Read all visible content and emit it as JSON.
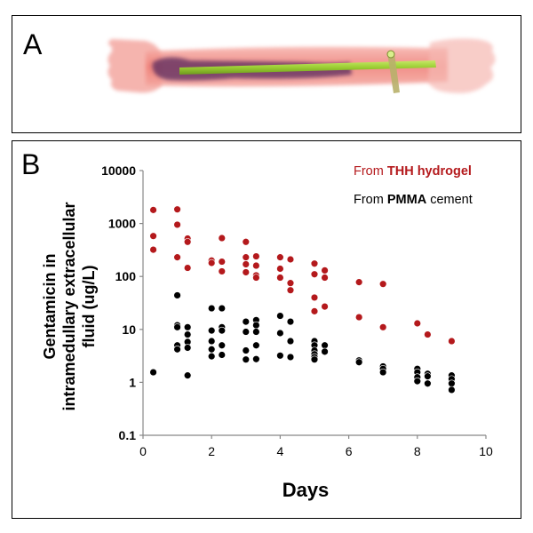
{
  "panel_a": {
    "label": "A",
    "image_icon": "bone-xray-rendering-icon"
  },
  "panel_b": {
    "label": "B"
  },
  "colors": {
    "thh": "#b4191c",
    "pmma": "#000000",
    "bone_tint": "#f07a72",
    "rod": "#9acd32",
    "marrow": "#5a2a5e"
  },
  "chart_data": {
    "type": "scatter",
    "title": "",
    "xlabel": "Days",
    "ylabel": "Gentamicin in intramedullary extracellular fluid  (ug/L)",
    "ylabel_lines": [
      "Gentamicin in",
      "intramedullary extracellular",
      "fluid  (ug/L)"
    ],
    "xlim": [
      0,
      10
    ],
    "ylim": [
      0.1,
      10000
    ],
    "yscale": "log",
    "xticks": [
      0,
      2,
      4,
      6,
      8,
      10
    ],
    "yticks": [
      0.1,
      1,
      10,
      100,
      1000,
      10000
    ],
    "xtick_labels": [
      "0",
      "2",
      "4",
      "6",
      "8",
      "10"
    ],
    "ytick_labels": [
      "0.1",
      "1",
      "10",
      "100",
      "1000",
      "10000"
    ],
    "grid": false,
    "legend_position": "top-right",
    "legend": [
      {
        "prefix": "From ",
        "bold": "THH hydrogel",
        "suffix": "",
        "color_key": "thh"
      },
      {
        "prefix": "From ",
        "bold": "PMMA",
        "suffix": " cement",
        "color_key": "pmma"
      }
    ],
    "series": [
      {
        "color_key": "thh",
        "points": [
          [
            0.3,
            1800
          ],
          [
            0.3,
            580
          ],
          [
            0.3,
            320
          ],
          [
            1,
            1850
          ],
          [
            1,
            950
          ],
          [
            1,
            230
          ],
          [
            1.3,
            520
          ],
          [
            1.3,
            450
          ],
          [
            1.3,
            145
          ],
          [
            2,
            200
          ],
          [
            2,
            180
          ],
          [
            2.3,
            530
          ],
          [
            2.3,
            190
          ],
          [
            2.3,
            125
          ],
          [
            3,
            450
          ],
          [
            3,
            230
          ],
          [
            3,
            170
          ],
          [
            3,
            120
          ],
          [
            3.3,
            240
          ],
          [
            3.3,
            160
          ],
          [
            3.3,
            105
          ],
          [
            3.3,
            95
          ],
          [
            4,
            230
          ],
          [
            4,
            140
          ],
          [
            4,
            95
          ],
          [
            4.3,
            210
          ],
          [
            4.3,
            75
          ],
          [
            4.3,
            55
          ],
          [
            5,
            175
          ],
          [
            5,
            110
          ],
          [
            5,
            40
          ],
          [
            5,
            22
          ],
          [
            5.3,
            130
          ],
          [
            5.3,
            95
          ],
          [
            5.3,
            27
          ],
          [
            6.3,
            78
          ],
          [
            6.3,
            17
          ],
          [
            7,
            72
          ],
          [
            7,
            11
          ],
          [
            8,
            13
          ],
          [
            8.3,
            8
          ],
          [
            9,
            6
          ]
        ]
      },
      {
        "color_key": "pmma",
        "points": [
          [
            0.3,
            1.55
          ],
          [
            1,
            44
          ],
          [
            1,
            12
          ],
          [
            1,
            11
          ],
          [
            1,
            5
          ],
          [
            1,
            4.2
          ],
          [
            1.3,
            11
          ],
          [
            1.3,
            8
          ],
          [
            1.3,
            5.8
          ],
          [
            1.3,
            4.5
          ],
          [
            1.3,
            1.35
          ],
          [
            2,
            25
          ],
          [
            2,
            9.5
          ],
          [
            2,
            6
          ],
          [
            2,
            4.2
          ],
          [
            2,
            3.1
          ],
          [
            2.3,
            25
          ],
          [
            2.3,
            11
          ],
          [
            2.3,
            9.5
          ],
          [
            2.3,
            5
          ],
          [
            2.3,
            3.3
          ],
          [
            3,
            14
          ],
          [
            3,
            9
          ],
          [
            3,
            4
          ],
          [
            3,
            2.7
          ],
          [
            3.3,
            15
          ],
          [
            3.3,
            12
          ],
          [
            3.3,
            9
          ],
          [
            3.3,
            5
          ],
          [
            3.3,
            2.75
          ],
          [
            4,
            18
          ],
          [
            4,
            8.5
          ],
          [
            4,
            3.2
          ],
          [
            4.3,
            14
          ],
          [
            4.3,
            6
          ],
          [
            4.3,
            3
          ],
          [
            5,
            6
          ],
          [
            5,
            5
          ],
          [
            5,
            4
          ],
          [
            5,
            3.4
          ],
          [
            5,
            3
          ],
          [
            5,
            2.7
          ],
          [
            5.3,
            5
          ],
          [
            5.3,
            3.8
          ],
          [
            6.3,
            2.6
          ],
          [
            6.3,
            2.4
          ],
          [
            7,
            2
          ],
          [
            7,
            1.8
          ],
          [
            7,
            1.55
          ],
          [
            8,
            1.8
          ],
          [
            8,
            1.55
          ],
          [
            8,
            1.25
          ],
          [
            8,
            1.05
          ],
          [
            8.3,
            1.45
          ],
          [
            8.3,
            1.3
          ],
          [
            8.3,
            0.95
          ],
          [
            9,
            1.35
          ],
          [
            9,
            1.15
          ],
          [
            9,
            0.95
          ],
          [
            9,
            0.72
          ]
        ]
      }
    ]
  }
}
